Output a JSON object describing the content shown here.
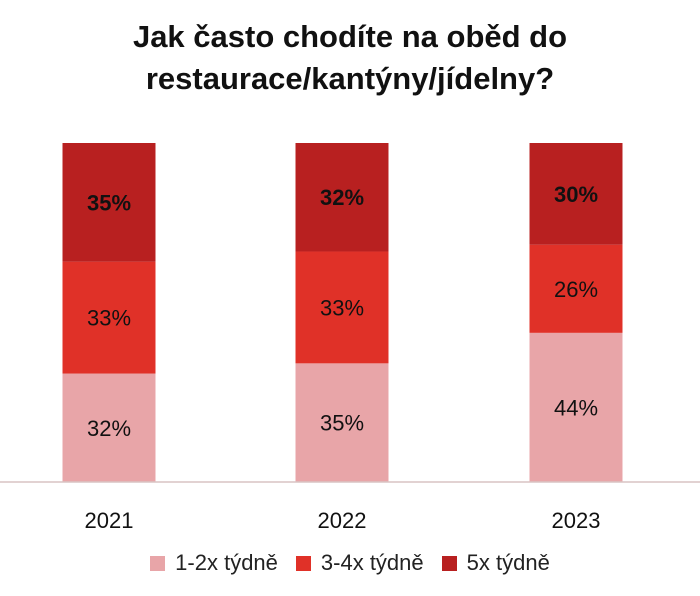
{
  "chart_data": {
    "type": "bar",
    "stacked": true,
    "title_lines": [
      "Jak často chodíte na oběd do",
      "restaurace/kantýny/jídelny?"
    ],
    "categories": [
      "2021",
      "2022",
      "2023"
    ],
    "series": [
      {
        "name": "1-2x týdně",
        "color": "#e8a5a8",
        "values": [
          32,
          35,
          44
        ],
        "labels": [
          "32%",
          "35%",
          "44%"
        ]
      },
      {
        "name": "3-4x týdně",
        "color": "#e03128",
        "values": [
          33,
          33,
          26
        ],
        "labels": [
          "33%",
          "33%",
          "26%"
        ]
      },
      {
        "name": "5x týdně",
        "color": "#b82020",
        "values": [
          35,
          32,
          30
        ],
        "labels": [
          "35%",
          "32%",
          "30%"
        ]
      }
    ],
    "ylim": [
      0,
      100
    ],
    "legend_position": "bottom",
    "grid": false
  }
}
